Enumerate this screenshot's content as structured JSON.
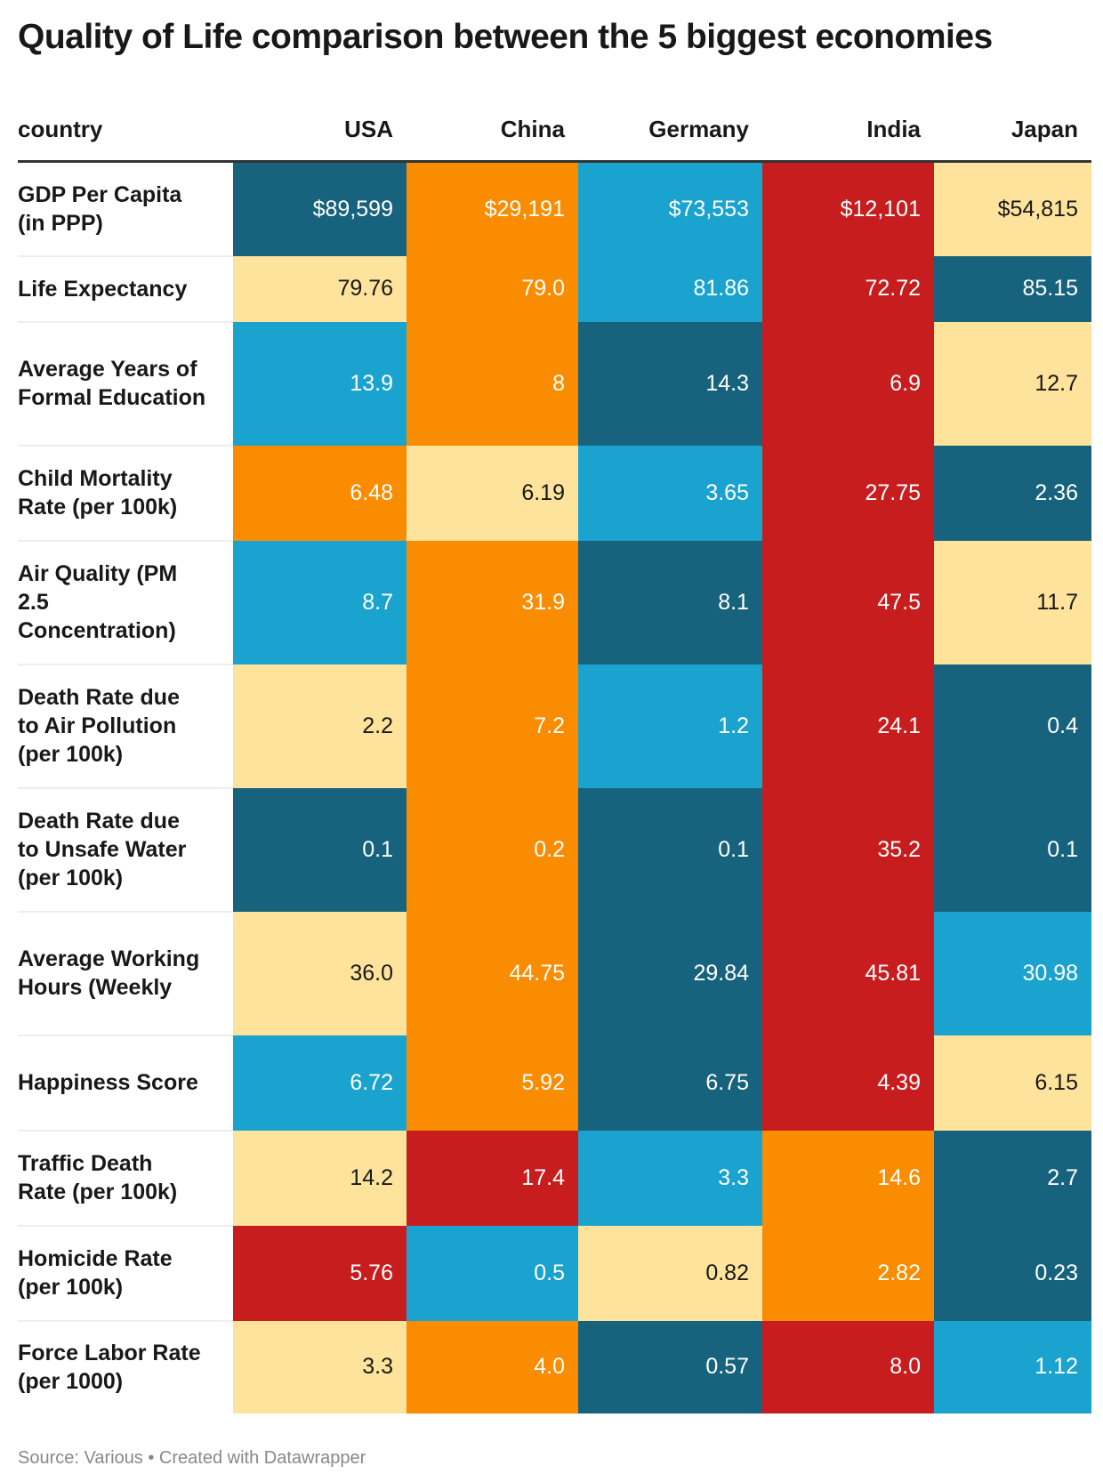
{
  "title": "Quality of Life comparison between the 5 biggest economies",
  "source": "Source: Various • Created with Datawrapper",
  "colors": {
    "dark": "#17627c",
    "orange": "#f98c00",
    "blue": "#1aa3ce",
    "red": "#c81d1e",
    "yellow": "#fee39c"
  },
  "chart_data": {
    "type": "table",
    "columns": [
      "country",
      "USA",
      "China",
      "Germany",
      "India",
      "Japan"
    ],
    "rows": [
      {
        "label": "GDP Per Capita (in PPP)",
        "values": [
          "$89,599",
          "$29,191",
          "$73,553",
          "$12,101",
          "$54,815"
        ],
        "colors": [
          "dark",
          "orange",
          "blue",
          "red",
          "yellow"
        ]
      },
      {
        "label": "Life Expectancy",
        "values": [
          "79.76",
          "79.0",
          "81.86",
          "72.72",
          "85.15"
        ],
        "colors": [
          "yellow",
          "orange",
          "blue",
          "red",
          "dark"
        ]
      },
      {
        "label": "Average Years of Formal Education",
        "values": [
          "13.9",
          "8",
          "14.3",
          "6.9",
          "12.7"
        ],
        "colors": [
          "blue",
          "orange",
          "dark",
          "red",
          "yellow"
        ]
      },
      {
        "label": "Child Mortality Rate (per 100k)",
        "values": [
          "6.48",
          "6.19",
          "3.65",
          "27.75",
          "2.36"
        ],
        "colors": [
          "orange",
          "yellow",
          "blue",
          "red",
          "dark"
        ]
      },
      {
        "label": "Air Quality (PM 2.5 Concentration)",
        "values": [
          "8.7",
          "31.9",
          "8.1",
          "47.5",
          "11.7"
        ],
        "colors": [
          "blue",
          "orange",
          "dark",
          "red",
          "yellow"
        ]
      },
      {
        "label": "Death Rate due to Air Pollution (per 100k)",
        "values": [
          "2.2",
          "7.2",
          "1.2",
          "24.1",
          "0.4"
        ],
        "colors": [
          "yellow",
          "orange",
          "blue",
          "red",
          "dark"
        ]
      },
      {
        "label": "Death Rate due to Unsafe Water (per 100k)",
        "values": [
          "0.1",
          "0.2",
          "0.1",
          "35.2",
          "0.1"
        ],
        "colors": [
          "dark",
          "orange",
          "dark",
          "red",
          "dark"
        ]
      },
      {
        "label": "Average Working Hours (Weekly",
        "values": [
          "36.0",
          "44.75",
          "29.84",
          "45.81",
          "30.98"
        ],
        "colors": [
          "yellow",
          "orange",
          "dark",
          "red",
          "blue"
        ]
      },
      {
        "label": "Happiness Score",
        "values": [
          "6.72",
          "5.92",
          "6.75",
          "4.39",
          "6.15"
        ],
        "colors": [
          "blue",
          "orange",
          "dark",
          "red",
          "yellow"
        ]
      },
      {
        "label": "Traffic Death Rate (per 100k)",
        "values": [
          "14.2",
          "17.4",
          "3.3",
          "14.6",
          "2.7"
        ],
        "colors": [
          "yellow",
          "red",
          "blue",
          "orange",
          "dark"
        ]
      },
      {
        "label": "Homicide Rate (per 100k)",
        "values": [
          "5.76",
          "0.5",
          "0.82",
          "2.82",
          "0.23"
        ],
        "colors": [
          "red",
          "blue",
          "yellow",
          "orange",
          "dark"
        ]
      },
      {
        "label": "Force Labor Rate (per 1000)",
        "values": [
          "3.3",
          "4.0",
          "0.57",
          "8.0",
          "1.12"
        ],
        "colors": [
          "yellow",
          "orange",
          "dark",
          "red",
          "blue"
        ]
      }
    ]
  }
}
